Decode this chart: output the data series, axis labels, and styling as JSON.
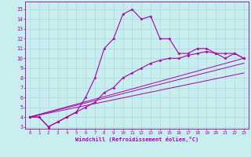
{
  "xlabel": "Windchill (Refroidissement éolien,°C)",
  "bg_color": "#c8eef0",
  "grid_color": "#aad8dc",
  "line_color": "#aa00aa",
  "xlim": [
    -0.5,
    23.5
  ],
  "ylim": [
    2.8,
    15.8
  ],
  "xticks": [
    0,
    1,
    2,
    3,
    4,
    5,
    6,
    7,
    8,
    9,
    10,
    11,
    12,
    13,
    14,
    15,
    16,
    17,
    18,
    19,
    20,
    21,
    22,
    23
  ],
  "yticks": [
    3,
    4,
    5,
    6,
    7,
    8,
    9,
    10,
    11,
    12,
    13,
    14,
    15
  ],
  "line1_x": [
    0,
    1,
    2,
    3,
    4,
    5,
    6,
    7,
    8,
    9,
    10,
    11,
    12,
    13,
    14,
    15,
    16,
    17,
    18,
    19,
    20,
    21,
    22,
    23
  ],
  "line1_y": [
    4.0,
    4.0,
    3.0,
    3.5,
    4.0,
    4.5,
    6.0,
    8.0,
    11.0,
    12.0,
    14.5,
    15.0,
    14.0,
    14.3,
    12.0,
    12.0,
    10.5,
    10.5,
    11.0,
    11.0,
    10.5,
    10.0,
    10.5,
    10.0
  ],
  "line2_x": [
    0,
    1,
    2,
    3,
    4,
    5,
    6,
    7,
    8,
    9,
    10,
    11,
    12,
    13,
    14,
    15,
    16,
    17,
    18,
    19,
    20,
    21,
    22,
    23
  ],
  "line2_y": [
    4.0,
    4.0,
    3.0,
    3.5,
    4.0,
    4.5,
    5.0,
    5.5,
    6.5,
    7.0,
    8.0,
    8.5,
    9.0,
    9.5,
    9.8,
    10.0,
    10.0,
    10.3,
    10.5,
    10.7,
    10.5,
    10.5,
    10.5,
    10.0
  ],
  "line3_x": [
    0,
    23
  ],
  "line3_y": [
    4.0,
    10.0
  ],
  "line4_x": [
    0,
    23
  ],
  "line4_y": [
    4.0,
    9.5
  ],
  "line5_x": [
    0,
    23
  ],
  "line5_y": [
    4.0,
    8.5
  ]
}
